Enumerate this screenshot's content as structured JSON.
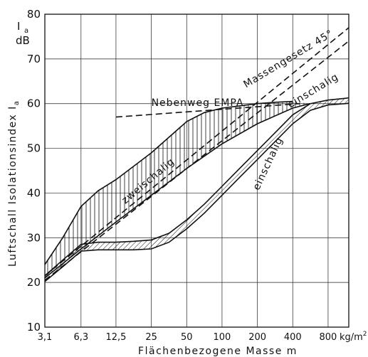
{
  "chart_data": {
    "type": "line",
    "xlabel": "Flächenbezogene Masse  m",
    "ylabel": "Luftschall  Isolationsindex  I",
    "ylabel_sub": "a",
    "yunit_symbol": "I",
    "yunit_symbol_sub": "a",
    "yunit": "dB",
    "x_scale": "log2",
    "ylim": [
      10,
      80
    ],
    "xlim": [
      3.1,
      1200
    ],
    "grid": true,
    "x_ticks": [
      {
        "v": 3.1,
        "label": "3,1"
      },
      {
        "v": 6.3,
        "label": "6,3"
      },
      {
        "v": 12.5,
        "label": "12,5"
      },
      {
        "v": 25,
        "label": "25"
      },
      {
        "v": 50,
        "label": "50"
      },
      {
        "v": 100,
        "label": "100"
      },
      {
        "v": 200,
        "label": "200"
      },
      {
        "v": 400,
        "label": "400"
      },
      {
        "v": 800,
        "label": "800"
      }
    ],
    "x_unit": "kg/m",
    "x_unit_sup": "2",
    "y_ticks": [
      10,
      20,
      30,
      40,
      50,
      60,
      70,
      80
    ],
    "series": [
      {
        "name": "zweischalig",
        "role": "upper",
        "style": "solid",
        "x": [
          3.1,
          4.4,
          6.3,
          8.8,
          12.5,
          17.7,
          25,
          35.4,
          50,
          70.7,
          100,
          141,
          200,
          283,
          400
        ],
        "y": [
          24,
          30,
          37,
          40.5,
          43,
          46,
          49,
          52.5,
          56,
          58,
          59,
          59.5,
          60,
          60.3,
          60.5
        ]
      },
      {
        "name": "zweischalig",
        "role": "lower",
        "style": "solid",
        "x": [
          3.1,
          6.3,
          12.5,
          25,
          50,
          100,
          200,
          400,
          560
        ],
        "y": [
          21,
          27.5,
          33.5,
          39.5,
          45.5,
          51,
          55.5,
          59,
          60
        ]
      },
      {
        "name": "einschalig",
        "role": "upper",
        "style": "solid",
        "x": [
          3.1,
          4.4,
          6.3,
          8.8,
          12.5,
          17.7,
          25,
          35.4,
          50,
          70.7,
          100,
          141,
          200,
          283,
          400,
          566,
          800,
          1131,
          1200
        ],
        "y": [
          21.5,
          25,
          28.5,
          29,
          29,
          29.2,
          29.5,
          31,
          34,
          37.5,
          41.5,
          45.5,
          49.5,
          53.5,
          57.5,
          60,
          60.8,
          61.2,
          61.3
        ]
      },
      {
        "name": "einschalig",
        "role": "lower",
        "style": "solid",
        "x": [
          3.1,
          4.4,
          6.3,
          8.8,
          12.5,
          17.7,
          25,
          35.4,
          50,
          70.7,
          100,
          141,
          200,
          283,
          400,
          566,
          800,
          1131,
          1200
        ],
        "y": [
          20.2,
          23.5,
          27,
          27.3,
          27.3,
          27.3,
          27.5,
          29,
          32,
          35.5,
          39.5,
          43.5,
          47.5,
          51.5,
          55.5,
          58.5,
          59.7,
          60,
          60.1
        ]
      },
      {
        "name": "Massengesetz",
        "role": "45deg",
        "style": "dashed",
        "x": [
          3.1,
          1200
        ],
        "y": [
          21.5,
          77
        ]
      },
      {
        "name": "Massengesetz",
        "role": "lower",
        "style": "dashed",
        "x": [
          3.1,
          1200
        ],
        "y": [
          20.5,
          74
        ]
      },
      {
        "name": "Nebenweg EMPA",
        "style": "dashed",
        "x": [
          12.5,
          460
        ],
        "y": [
          57,
          60
        ]
      }
    ],
    "annotations": [
      {
        "text": "Nebenweg EMPA",
        "x": 25,
        "y": 59.5,
        "rotate": 0
      },
      {
        "text": "Massengesetz  45°",
        "x": 160,
        "y": 63.5,
        "rotate": -31
      },
      {
        "text": "zweischalig",
        "x": 15,
        "y": 37.5,
        "rotate": -40
      },
      {
        "text": "einschalig",
        "x": 380,
        "y": 59,
        "rotate": -31
      },
      {
        "text": "einschalig",
        "x": 205,
        "y": 40.5,
        "rotate": -65
      }
    ]
  }
}
